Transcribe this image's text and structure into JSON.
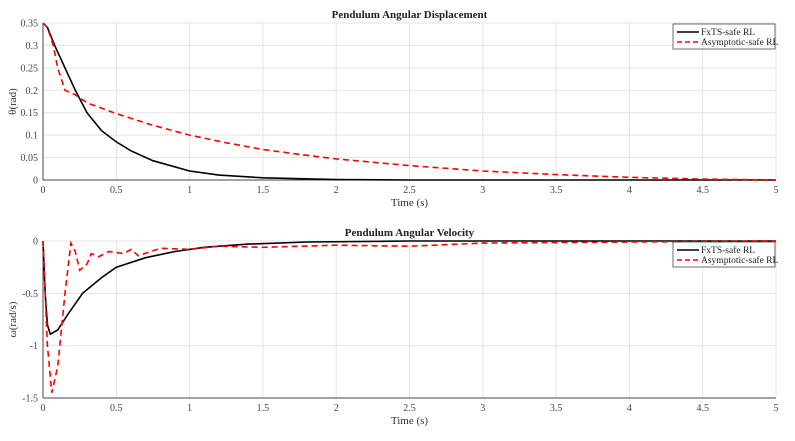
{
  "chart_data": [
    {
      "type": "line",
      "title": "Pendulum Angular Displacement",
      "xlabel": "Time (s)",
      "ylabel": "θ(rad)",
      "xlim": [
        0,
        5
      ],
      "ylim": [
        0,
        0.35
      ],
      "xticks": [
        "0",
        "0.5",
        "1",
        "1.5",
        "2",
        "2.5",
        "3",
        "3.5",
        "4",
        "4.5",
        "5"
      ],
      "yticks": [
        "0",
        "0.05",
        "0.1",
        "0.15",
        "0.2",
        "0.25",
        "0.3",
        "0.35"
      ],
      "grid": true,
      "legend": "top-right",
      "series": [
        {
          "name": "FxTS-safe RL",
          "color": "#000000",
          "style": "solid",
          "x": [
            0,
            0.03,
            0.08,
            0.15,
            0.22,
            0.3,
            0.4,
            0.5,
            0.6,
            0.75,
            1,
            1.2,
            1.5,
            2,
            2.5,
            5
          ],
          "y": [
            0.35,
            0.34,
            0.3,
            0.25,
            0.2,
            0.15,
            0.11,
            0.085,
            0.065,
            0.043,
            0.02,
            0.011,
            0.005,
            0.001,
            0,
            0
          ]
        },
        {
          "name": "Asymptotic-safe RL",
          "color": "#ff0000",
          "style": "dashed",
          "x": [
            0,
            0.03,
            0.07,
            0.1,
            0.15,
            0.22,
            0.3,
            0.5,
            0.75,
            1,
            1.25,
            1.5,
            1.75,
            2,
            2.5,
            3,
            3.5,
            4,
            4.5,
            5
          ],
          "y": [
            0.35,
            0.34,
            0.3,
            0.25,
            0.2,
            0.19,
            0.172,
            0.148,
            0.122,
            0.1,
            0.083,
            0.068,
            0.057,
            0.047,
            0.032,
            0.02,
            0.012,
            0.006,
            0.002,
            0
          ]
        }
      ]
    },
    {
      "type": "line",
      "title": "Pendulum Angular Velocity",
      "xlabel": "Time (s)",
      "ylabel": "ω(rad/s)",
      "xlim": [
        0,
        5
      ],
      "ylim": [
        -1.5,
        0
      ],
      "xticks": [
        "0",
        "0.5",
        "1",
        "1.5",
        "2",
        "2.5",
        "3",
        "3.5",
        "4",
        "4.5",
        "5"
      ],
      "yticks": [
        "-1.5",
        "-1",
        "-0.5",
        "0"
      ],
      "grid": true,
      "legend": "top-right",
      "series": [
        {
          "name": "FxTS-safe RL",
          "color": "#000000",
          "style": "solid",
          "x": [
            0,
            0.015,
            0.03,
            0.05,
            0.1,
            0.17,
            0.27,
            0.4,
            0.5,
            0.7,
            0.9,
            1.1,
            1.4,
            1.8,
            2.5,
            5
          ],
          "y": [
            0,
            -0.5,
            -0.8,
            -0.89,
            -0.85,
            -0.7,
            -0.5,
            -0.35,
            -0.25,
            -0.16,
            -0.1,
            -0.06,
            -0.03,
            -0.01,
            0,
            0
          ]
        },
        {
          "name": "Asymptotic-safe RL",
          "color": "#ff0000",
          "style": "dashed",
          "x": [
            0,
            0.03,
            0.06,
            0.1,
            0.15,
            0.19,
            0.22,
            0.25,
            0.3,
            0.33,
            0.38,
            0.45,
            0.55,
            0.6,
            0.65,
            0.8,
            1,
            1.2,
            1.5,
            2,
            2.5,
            3,
            4,
            5
          ],
          "y": [
            0,
            -1,
            -1.45,
            -1.2,
            -0.5,
            -0.02,
            -0.1,
            -0.28,
            -0.22,
            -0.12,
            -0.15,
            -0.1,
            -0.12,
            -0.08,
            -0.14,
            -0.07,
            -0.08,
            -0.05,
            -0.06,
            -0.04,
            -0.05,
            -0.02,
            -0.01,
            0
          ]
        }
      ]
    }
  ]
}
